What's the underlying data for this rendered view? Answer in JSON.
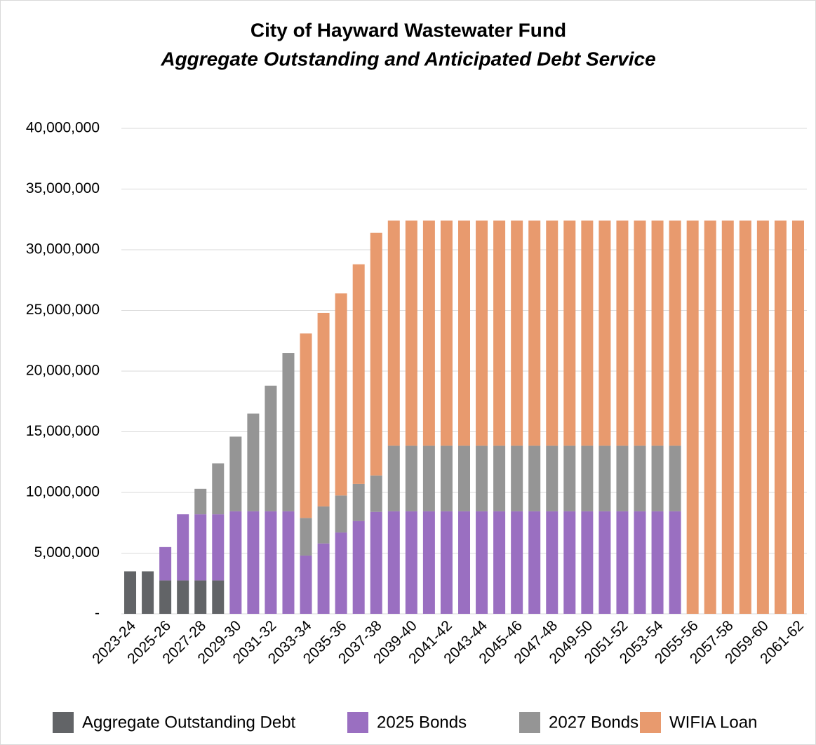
{
  "chart_data": {
    "type": "stacked_bar",
    "title": "City of Hayward Wastewater Fund",
    "subtitle": "Aggregate Outstanding and Anticipated Debt Service",
    "categories": [
      "2023-24",
      null,
      "2025-26",
      null,
      "2027-28",
      null,
      "2029-30",
      null,
      "2031-32",
      null,
      "2033-34",
      null,
      "2035-36",
      null,
      "2037-38",
      null,
      "2039-40",
      null,
      "2041-42",
      null,
      "2043-44",
      null,
      "2045-46",
      null,
      "2047-48",
      null,
      "2049-50",
      null,
      "2051-52",
      null,
      "2053-54",
      null,
      "2055-56",
      null,
      "2057-58",
      null,
      "2059-60",
      null,
      "2061-62"
    ],
    "series": [
      {
        "name": "Aggregate Outstanding Debt",
        "color": "#626467",
        "values": [
          3500000,
          3500000,
          2750000,
          2750000,
          2750000,
          2750000,
          null,
          null,
          null,
          null,
          null,
          null,
          null,
          null,
          null,
          null,
          null,
          null,
          null,
          null,
          null,
          null,
          null,
          null,
          null,
          null,
          null,
          null,
          null,
          null,
          null,
          null,
          null,
          null,
          null,
          null,
          null,
          null,
          null
        ]
      },
      {
        "name": "2025 Bonds",
        "color": "#9a6fc1",
        "values": [
          null,
          null,
          2750000,
          5450000,
          5450000,
          5450000,
          8450000,
          8450000,
          8450000,
          8450000,
          4800000,
          5800000,
          6700000,
          7650000,
          8400000,
          8450000,
          8450000,
          8450000,
          8450000,
          8450000,
          8450000,
          8450000,
          8450000,
          8450000,
          8450000,
          8450000,
          8450000,
          8450000,
          8450000,
          8450000,
          8450000,
          8450000,
          null,
          null,
          null,
          null,
          null,
          null,
          null
        ]
      },
      {
        "name": "2027 Bonds",
        "color": "#959595",
        "values": [
          null,
          null,
          null,
          null,
          2100000,
          4200000,
          6150000,
          8050000,
          10350000,
          13050000,
          3100000,
          3050000,
          3050000,
          3050000,
          3000000,
          5400000,
          5400000,
          5400000,
          5400000,
          5400000,
          5400000,
          5400000,
          5400000,
          5400000,
          5400000,
          5400000,
          5400000,
          5400000,
          5400000,
          5400000,
          5400000,
          5400000,
          null,
          null,
          null,
          null,
          null,
          null,
          null
        ]
      },
      {
        "name": "WIFIA Loan",
        "color": "#e89a6e",
        "values": [
          null,
          null,
          null,
          null,
          null,
          null,
          null,
          null,
          null,
          null,
          15200000,
          15950000,
          16650000,
          18100000,
          20000000,
          18550000,
          18550000,
          18550000,
          18550000,
          18550000,
          18550000,
          18550000,
          18550000,
          18550000,
          18550000,
          18550000,
          18550000,
          18550000,
          18550000,
          18550000,
          18550000,
          18550000,
          32400000,
          32400000,
          32400000,
          32400000,
          32400000,
          32400000,
          32400000
        ]
      }
    ],
    "ylim": [
      0,
      40000000
    ],
    "yticks": [
      {
        "value": 0,
        "label": "-"
      },
      {
        "value": 5000000,
        "label": "5,000,000"
      },
      {
        "value": 10000000,
        "label": "10,000,000"
      },
      {
        "value": 15000000,
        "label": "15,000,000"
      },
      {
        "value": 20000000,
        "label": "20,000,000"
      },
      {
        "value": 25000000,
        "label": "25,000,000"
      },
      {
        "value": 30000000,
        "label": "30,000,000"
      },
      {
        "value": 35000000,
        "label": "35,000,000"
      },
      {
        "value": 40000000,
        "label": "40,000,000"
      }
    ],
    "grid": true,
    "legend": "bottom"
  }
}
